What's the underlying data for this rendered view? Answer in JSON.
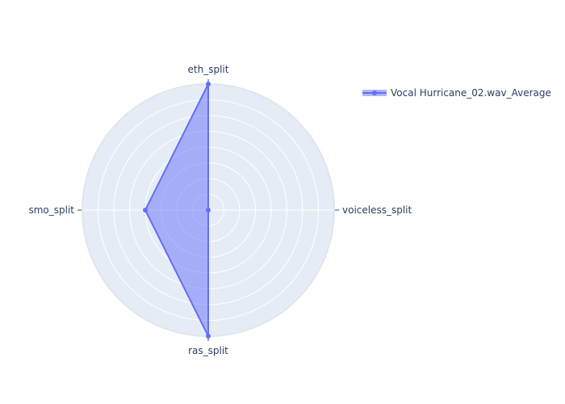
{
  "chart_data": {
    "type": "radar",
    "theta": [
      "eth_split",
      "voiceless_split",
      "ras_split",
      "smo_split"
    ],
    "r_range": [
      0,
      1
    ],
    "series": [
      {
        "name": "Vocal Hurricane_02.wav_Average",
        "values": [
          1.0,
          0.0,
          1.0,
          0.5
        ],
        "color": "#636efa"
      }
    ],
    "grid": true,
    "legend": "top-right",
    "plot_background": "#e5ecf6",
    "grid_color": "#ffffff"
  }
}
